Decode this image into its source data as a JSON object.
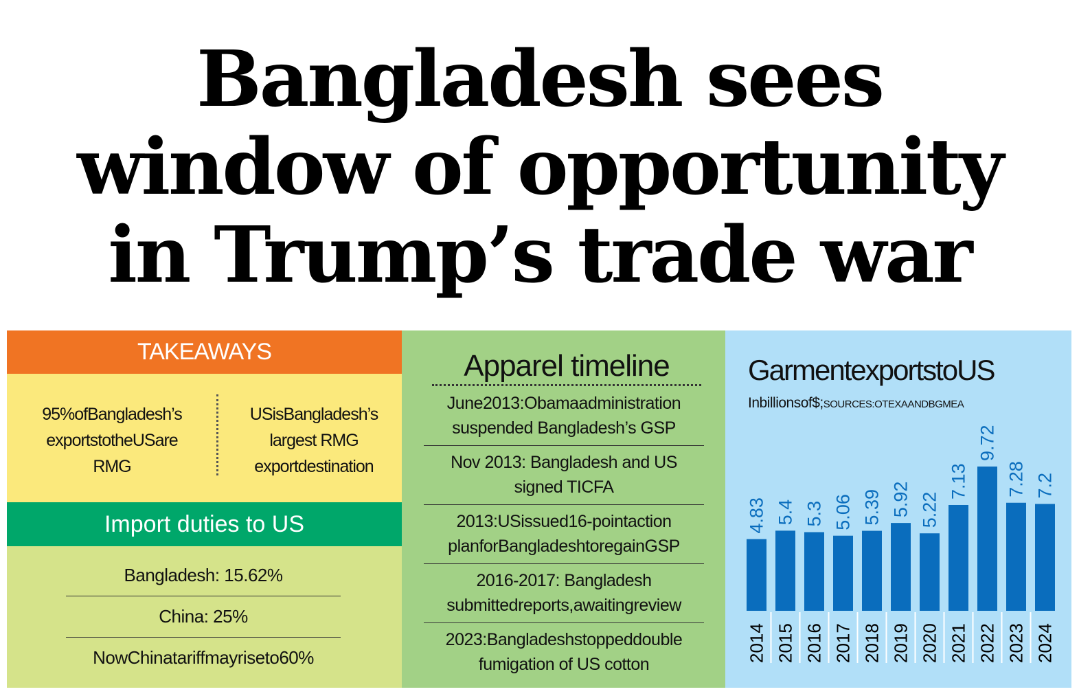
{
  "headline": {
    "line1": "Bangladesh sees",
    "line2": "window of opportunity",
    "line3": "in Trump’s trade war"
  },
  "takeaways": {
    "header": "TAKEAWAYS",
    "left": [
      "95%ofBangladesh’s",
      "exportstotheUSare",
      "RMG"
    ],
    "right": [
      "USisBangladesh’s",
      "largest RMG",
      "exportdestination"
    ]
  },
  "import_duties": {
    "header": "Import duties to US",
    "rows": [
      "Bangladesh: 15.62%",
      "China: 25%",
      "NowChinatariffmayriseto60%"
    ]
  },
  "timeline": {
    "title": "Apparel timeline",
    "items": [
      [
        "June2013:Obamaadministration",
        "suspended Bangladesh’s GSP"
      ],
      [
        "Nov 2013: Bangladesh and US",
        "signed TICFA"
      ],
      [
        "2013:USissued16-pointaction",
        "planforBangladeshtoregainGSP"
      ],
      [
        "2016-2017: Bangladesh",
        "submittedreports,awaitingreview"
      ],
      [
        "2023:Bangladeshstoppeddouble",
        "fumigation of US cotton"
      ]
    ]
  },
  "colors": {
    "takeaways_header": "#f07423",
    "takeaways_body": "#fbe97c",
    "duties_header": "#00a76a",
    "duties_body": "#d5e38a",
    "timeline_bg": "#a2d186",
    "chart_bg": "#b1dff8",
    "bar": "#0a6dbd"
  },
  "chart_data": {
    "type": "bar",
    "title": "GarmentexportstoUS",
    "subtitle_main": "Inbillionsof$;",
    "subtitle_source": "SOURCES:OTEXAANDBGMEA",
    "categories": [
      "2014",
      "2015",
      "2016",
      "2017",
      "2018",
      "2019",
      "2020",
      "2021",
      "2022",
      "2023",
      "2024"
    ],
    "values": [
      4.83,
      5.4,
      5.3,
      5.06,
      5.39,
      5.92,
      5.22,
      7.13,
      9.72,
      7.28,
      7.2
    ],
    "data_labels": [
      "4.83",
      "5.4",
      "5.3",
      "5.06",
      "5.39",
      "5.92",
      "5.22",
      "7.13",
      "9.72",
      "7.28",
      "7.2"
    ],
    "ylim": [
      0,
      10
    ],
    "grid": false,
    "legend": "none"
  }
}
